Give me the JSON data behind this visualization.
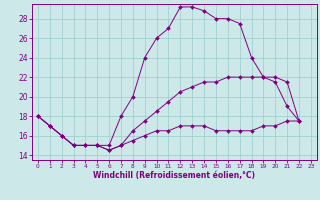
{
  "xlabel": "Windchill (Refroidissement éolien,°C)",
  "bg_color": "#cce8e8",
  "line_color": "#800080",
  "grid_color": "#99cccc",
  "xlim": [
    -0.5,
    23.5
  ],
  "ylim": [
    13.5,
    29.5
  ],
  "yticks": [
    14,
    16,
    18,
    20,
    22,
    24,
    26,
    28
  ],
  "xticks": [
    0,
    1,
    2,
    3,
    4,
    5,
    6,
    7,
    8,
    9,
    10,
    11,
    12,
    13,
    14,
    15,
    16,
    17,
    18,
    19,
    20,
    21,
    22,
    23
  ],
  "line1_x": [
    0,
    1,
    2,
    3,
    4,
    5,
    6,
    7,
    8,
    9,
    10,
    11,
    12,
    13,
    14,
    15,
    16,
    17,
    18,
    19,
    20,
    21,
    22
  ],
  "line1_y": [
    18,
    17,
    16,
    15,
    15,
    15,
    15,
    18,
    20,
    24,
    26,
    27,
    29.2,
    29.2,
    28.8,
    28,
    28,
    27.5,
    24,
    22,
    21.5,
    19,
    17.5
  ],
  "line2_x": [
    0,
    1,
    2,
    3,
    4,
    5,
    6,
    7,
    8,
    9,
    10,
    11,
    12,
    13,
    14,
    15,
    16,
    17,
    18,
    19,
    20,
    21,
    22
  ],
  "line2_y": [
    18,
    17,
    16,
    15,
    15,
    15,
    14.5,
    15,
    16.5,
    17.5,
    18.5,
    19.5,
    20.5,
    21,
    21.5,
    21.5,
    22,
    22,
    22,
    22,
    22,
    21.5,
    17.5
  ],
  "line3_x": [
    0,
    1,
    2,
    3,
    4,
    5,
    6,
    7,
    8,
    9,
    10,
    11,
    12,
    13,
    14,
    15,
    16,
    17,
    18,
    19,
    20,
    21,
    22
  ],
  "line3_y": [
    18,
    17,
    16,
    15,
    15,
    15,
    14.5,
    15,
    15.5,
    16,
    16.5,
    16.5,
    17,
    17,
    17,
    16.5,
    16.5,
    16.5,
    16.5,
    17,
    17,
    17.5,
    17.5
  ]
}
